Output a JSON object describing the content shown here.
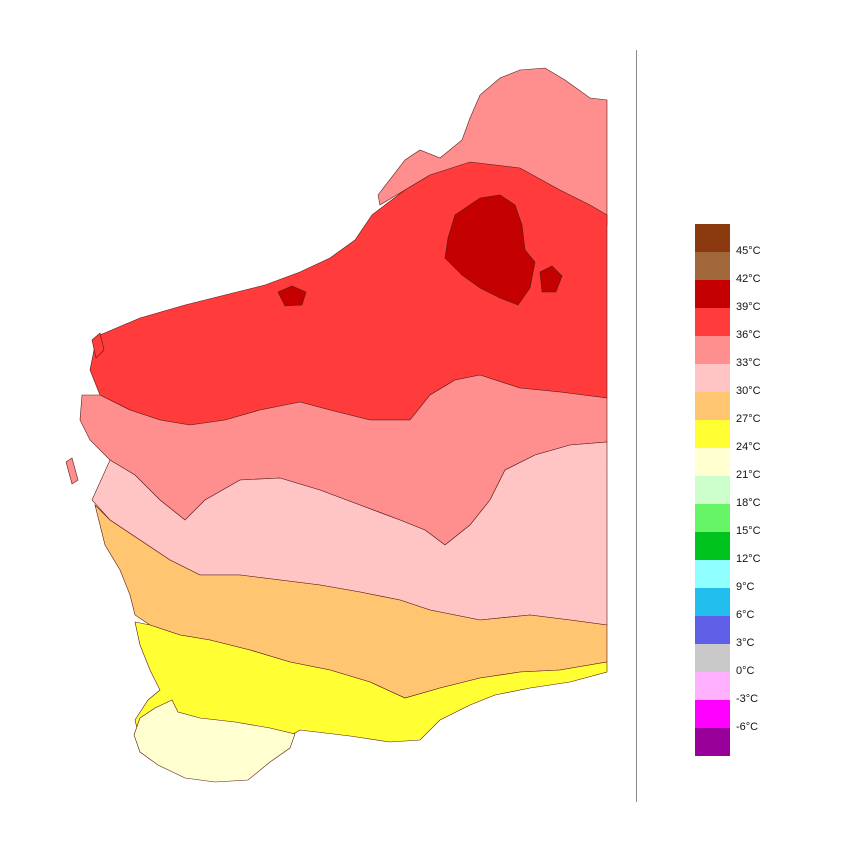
{
  "legend": {
    "colors": [
      "#8B3A0F",
      "#A0673A",
      "#C40000",
      "#FF3B3B",
      "#FF8F8F",
      "#FFC4C4",
      "#FFC570",
      "#FFFF33",
      "#FFFFD0",
      "#CCFFCC",
      "#66F566",
      "#00C41D",
      "#90FFFF",
      "#22BFEE",
      "#5E5EE6",
      "#C9C9C9",
      "#FFB0FF",
      "#FF00FF",
      "#990099"
    ],
    "labels": [
      "45°C",
      "42°C",
      "39°C",
      "36°C",
      "33°C",
      "30°C",
      "27°C",
      "24°C",
      "21°C",
      "18°C",
      "15°C",
      "12°C",
      "9°C",
      "6°C",
      "3°C",
      "0°C",
      "-3°C",
      "-6°C"
    ]
  },
  "map": {
    "zones": [
      {
        "name": "zone-39-42",
        "color": "#C40000"
      },
      {
        "name": "zone-36-39",
        "color": "#FF3B3B"
      },
      {
        "name": "zone-33-36",
        "color": "#FF8F8F"
      },
      {
        "name": "zone-30-33",
        "color": "#FFC4C4"
      },
      {
        "name": "zone-27-30",
        "color": "#FFC570"
      },
      {
        "name": "zone-24-27",
        "color": "#FFFF33"
      },
      {
        "name": "zone-21-24",
        "color": "#FFFFD0"
      }
    ]
  }
}
